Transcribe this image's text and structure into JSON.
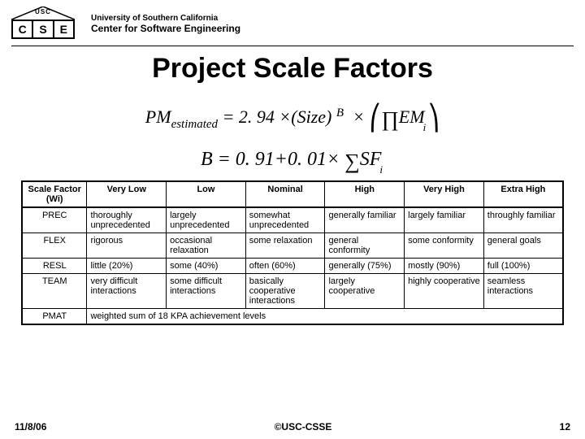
{
  "header": {
    "usc_badge": "USC",
    "cells": [
      "C",
      "S",
      "E"
    ],
    "university": "University of Southern California",
    "center": "Center for Software Engineering"
  },
  "title": "Project Scale Factors",
  "equations": {
    "pm": "PM",
    "estimated": "estimated",
    "eq1_mid": "= 2. 94 ×(Size)",
    "B": "B",
    "times": "×",
    "prod": "∏",
    "EM": "EM",
    "i": "i",
    "eq2_lhs": "B",
    "eq2_eq": " = 0. 91+0. 01×",
    "sigma": "∑",
    "SF": "SF"
  },
  "table": {
    "headers": [
      "Scale Factor (Wi)",
      "Very Low",
      "Low",
      "Nominal",
      "High",
      "Very High",
      "Extra High"
    ],
    "rows": [
      {
        "label": "PREC",
        "cells": [
          "thoroughly unprecedented",
          "largely unprecedented",
          "somewhat unprecedented",
          "generally familiar",
          "largely familiar",
          "throughly familiar"
        ]
      },
      {
        "label": "FLEX",
        "cells": [
          "rigorous",
          "occasional relaxation",
          "some relaxation",
          "general conformity",
          "some conformity",
          "general goals"
        ]
      },
      {
        "label": "RESL",
        "cells": [
          "little (20%)",
          "some (40%)",
          "often (60%)",
          "generally (75%)",
          "mostly (90%)",
          "full (100%)"
        ]
      },
      {
        "label": "TEAM",
        "cells": [
          "very difficult interactions",
          "some difficult interactions",
          "basically cooperative interactions",
          "largely cooperative",
          "highly cooperative",
          "seamless interactions"
        ]
      },
      {
        "label": "PMAT",
        "span": "weighted sum of 18 KPA achievement levels"
      }
    ]
  },
  "footer": {
    "date": "11/8/06",
    "copyright": "©USC-CSSE",
    "page": "12"
  }
}
